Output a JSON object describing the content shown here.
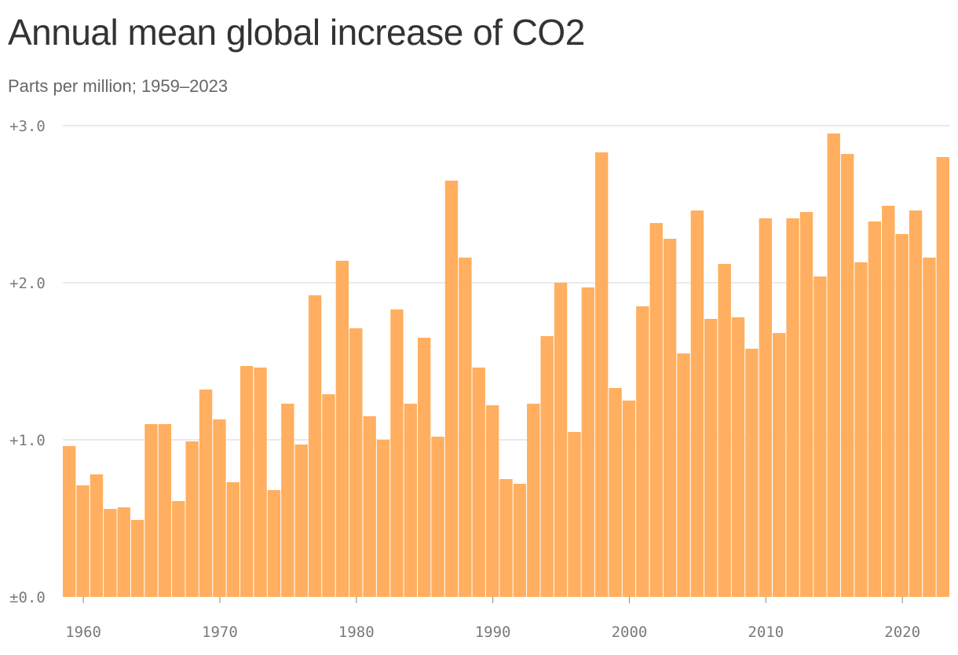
{
  "chart_data": {
    "type": "bar",
    "title": "Annual mean global increase of CO2",
    "subtitle": "Parts per million; 1959–2023",
    "bar_color": "#FFAF5F",
    "grid_color": "#dddddd",
    "grid": true,
    "ylim": [
      0,
      3
    ],
    "yticks": [
      {
        "value": 0,
        "label": "±0.0"
      },
      {
        "value": 1,
        "label": "+1.0"
      },
      {
        "value": 2,
        "label": "+2.0"
      },
      {
        "value": 3,
        "label": "+3.0"
      }
    ],
    "xticks": [
      1960,
      1970,
      1980,
      1990,
      2000,
      2010,
      2020
    ],
    "x": [
      1959,
      1960,
      1961,
      1962,
      1963,
      1964,
      1965,
      1966,
      1967,
      1968,
      1969,
      1970,
      1971,
      1972,
      1973,
      1974,
      1975,
      1976,
      1977,
      1978,
      1979,
      1980,
      1981,
      1982,
      1983,
      1984,
      1985,
      1986,
      1987,
      1988,
      1989,
      1990,
      1991,
      1992,
      1993,
      1994,
      1995,
      1996,
      1997,
      1998,
      1999,
      2000,
      2001,
      2002,
      2003,
      2004,
      2005,
      2006,
      2007,
      2008,
      2009,
      2010,
      2011,
      2012,
      2013,
      2014,
      2015,
      2016,
      2017,
      2018,
      2019,
      2020,
      2021,
      2022,
      2023
    ],
    "values": [
      0.96,
      0.71,
      0.78,
      0.56,
      0.57,
      0.49,
      1.1,
      1.1,
      0.61,
      0.99,
      1.32,
      1.13,
      0.73,
      1.47,
      1.46,
      0.68,
      1.23,
      0.97,
      1.92,
      1.29,
      2.14,
      1.71,
      1.15,
      1.0,
      1.83,
      1.23,
      1.65,
      1.02,
      2.65,
      2.16,
      1.46,
      1.22,
      0.75,
      0.72,
      1.23,
      1.66,
      2.0,
      1.05,
      1.97,
      2.83,
      1.33,
      1.25,
      1.85,
      2.38,
      2.28,
      1.55,
      2.46,
      1.77,
      2.12,
      1.78,
      1.58,
      2.41,
      1.68,
      2.41,
      2.45,
      2.04,
      2.95,
      2.82,
      2.13,
      2.39,
      2.49,
      2.31,
      2.46,
      2.16,
      2.8
    ]
  }
}
